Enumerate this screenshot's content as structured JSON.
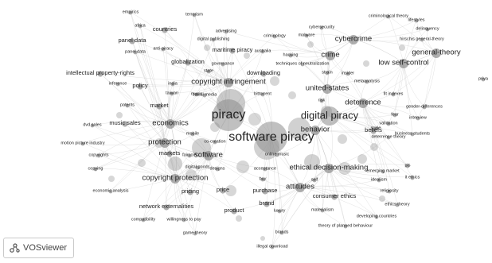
{
  "app": {
    "name": "VOSviewer"
  },
  "colors": {
    "node": "#8c8c8c",
    "edge": "#c8c8c8",
    "text": "#222222",
    "background": "#ffffff"
  },
  "icons": {
    "logo": "vosviewer-logo-icon"
  },
  "nodes": [
    {
      "label": "empirics",
      "weight": 1
    },
    {
      "label": "terrorism",
      "weight": 1
    },
    {
      "label": "africa",
      "weight": 1
    },
    {
      "label": "countries",
      "weight": 2
    },
    {
      "label": "advertising",
      "weight": 1
    },
    {
      "label": "digital publishing",
      "weight": 1
    },
    {
      "label": "panel data",
      "weight": 2
    },
    {
      "label": "panel data",
      "weight": 1
    },
    {
      "label": "anti-piracy",
      "weight": 1
    },
    {
      "label": "maritime piracy",
      "weight": 2
    },
    {
      "label": "criminology",
      "weight": 1
    },
    {
      "label": "australia",
      "weight": 1
    },
    {
      "label": "cybersecurity",
      "weight": 1
    },
    {
      "label": "malware",
      "weight": 1
    },
    {
      "label": "cybercrime",
      "weight": 3
    },
    {
      "label": "criminological theory",
      "weight": 1
    },
    {
      "label": "lifestyles",
      "weight": 1
    },
    {
      "label": "delinquency",
      "weight": 1
    },
    {
      "label": "hirschis general-theory",
      "weight": 1
    },
    {
      "label": "general-theory",
      "weight": 3
    },
    {
      "label": "globalization",
      "weight": 2
    },
    {
      "label": "governance",
      "weight": 1
    },
    {
      "label": "hacking",
      "weight": 1
    },
    {
      "label": "crime",
      "weight": 3
    },
    {
      "label": "techniques of neutralization",
      "weight": 1
    },
    {
      "label": "low self-control",
      "weight": 3
    },
    {
      "label": "intellectual property-rights",
      "weight": 2
    },
    {
      "label": "state",
      "weight": 1
    },
    {
      "label": "downloading",
      "weight": 2
    },
    {
      "label": "strain",
      "weight": 1
    },
    {
      "label": "insider",
      "weight": 1
    },
    {
      "label": "inference",
      "weight": 1
    },
    {
      "label": "policy",
      "weight": 2
    },
    {
      "label": "india",
      "weight": 1
    },
    {
      "label": "copyright infringement",
      "weight": 3
    },
    {
      "label": "metaanalysis",
      "weight": 1
    },
    {
      "label": "taiwan",
      "weight": 1
    },
    {
      "label": "music",
      "weight": 1
    },
    {
      "label": "social media",
      "weight": 1
    },
    {
      "label": "united-states",
      "weight": 3
    },
    {
      "label": "bittorrent",
      "weight": 1
    },
    {
      "label": "fit indexes",
      "weight": 1
    },
    {
      "label": "patents",
      "weight": 1
    },
    {
      "label": "market",
      "weight": 2
    },
    {
      "label": "risk",
      "weight": 1
    },
    {
      "label": "deterrence",
      "weight": 3
    },
    {
      "label": "gender-differences",
      "weight": 1
    },
    {
      "label": "fear",
      "weight": 1
    },
    {
      "label": "piracy",
      "weight": 5
    },
    {
      "label": "digital piracy",
      "weight": 4
    },
    {
      "label": "interview",
      "weight": 1
    },
    {
      "label": "dvd sales",
      "weight": 1
    },
    {
      "label": "music sales",
      "weight": 2
    },
    {
      "label": "economics",
      "weight": 3
    },
    {
      "label": "validation",
      "weight": 1
    },
    {
      "label": "scale",
      "weight": 1
    },
    {
      "label": "mobile",
      "weight": 1
    },
    {
      "label": "co-creation",
      "weight": 1
    },
    {
      "label": "deterrence theory",
      "weight": 1
    },
    {
      "label": "software piracy",
      "weight": 5
    },
    {
      "label": "motion picture industry",
      "weight": 1
    },
    {
      "label": "protection",
      "weight": 3
    },
    {
      "label": "behavior",
      "weight": 3
    },
    {
      "label": "beliefs",
      "weight": 2
    },
    {
      "label": "business students",
      "weight": 1
    },
    {
      "label": "copyrights",
      "weight": 1
    },
    {
      "label": "markets",
      "weight": 2
    },
    {
      "label": "online music",
      "weight": 1
    },
    {
      "label": "faircoin",
      "weight": 1
    },
    {
      "label": "software",
      "weight": 3
    },
    {
      "label": "pls",
      "weight": 1
    },
    {
      "label": "copying",
      "weight": 1
    },
    {
      "label": "digital goods",
      "weight": 1
    },
    {
      "label": "designs",
      "weight": 1
    },
    {
      "label": "acceptance",
      "weight": 1
    },
    {
      "label": "emerging market",
      "weight": 1
    },
    {
      "label": "ethical decision-making",
      "weight": 3
    },
    {
      "label": "it ethics",
      "weight": 1
    },
    {
      "label": "copyright protection",
      "weight": 3
    },
    {
      "label": "buy",
      "weight": 1
    },
    {
      "label": "self",
      "weight": 1
    },
    {
      "label": "attitudes",
      "weight": 3
    },
    {
      "label": "idealism",
      "weight": 1
    },
    {
      "label": "economic analysis",
      "weight": 1
    },
    {
      "label": "pricing",
      "weight": 2
    },
    {
      "label": "price",
      "weight": 2
    },
    {
      "label": "purchase",
      "weight": 2
    },
    {
      "label": "consumer ethics",
      "weight": 2
    },
    {
      "label": "religiosity",
      "weight": 1
    },
    {
      "label": "brand",
      "weight": 2
    },
    {
      "label": "network externalities",
      "weight": 2
    },
    {
      "label": "ethics theory",
      "weight": 1
    },
    {
      "label": "product",
      "weight": 2
    },
    {
      "label": "luxury",
      "weight": 1
    },
    {
      "label": "materialism",
      "weight": 1
    },
    {
      "label": "compatibility",
      "weight": 1
    },
    {
      "label": "willingness to pay",
      "weight": 1
    },
    {
      "label": "developing countries",
      "weight": 1
    },
    {
      "label": "theory of planned behaviour",
      "weight": 1
    },
    {
      "label": "game theory",
      "weight": 1
    },
    {
      "label": "brands",
      "weight": 1
    },
    {
      "label": "illegal download",
      "weight": 1
    },
    {
      "label": "priva",
      "weight": 1
    }
  ]
}
